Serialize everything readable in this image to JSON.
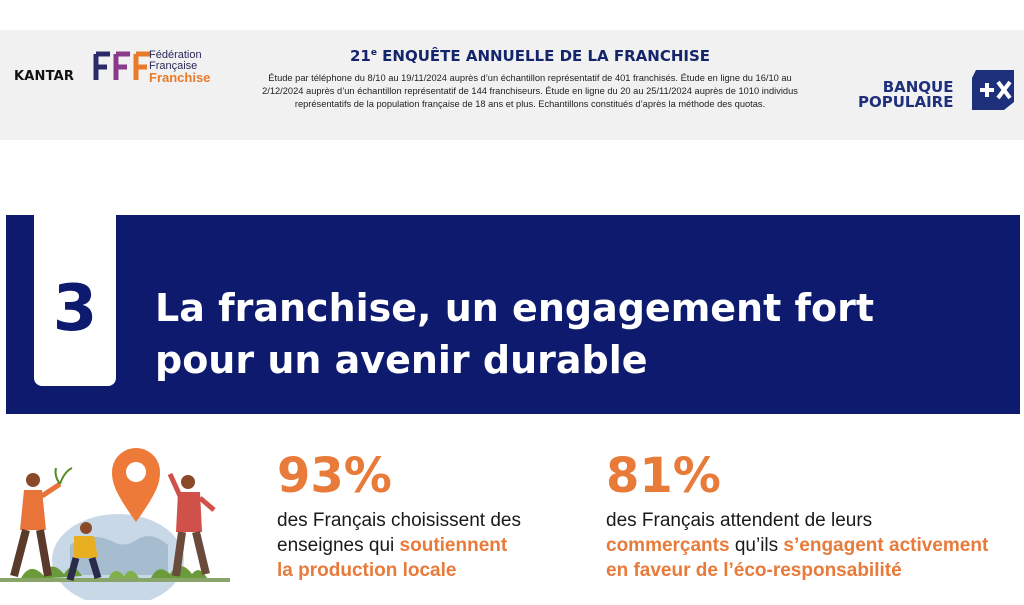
{
  "header": {
    "kantar": "KANTAR",
    "fff_line1": "Fédération",
    "fff_line2": "Française",
    "fff_line3": "Franchise",
    "title_number": "21",
    "title_suffix": "e",
    "title_rest": " ENQUÊTE ANNUELLE DE LA FRANCHISE",
    "desc_line1": "Étude par téléphone du 8/10 au 19/11/2024 auprès d’un échantillon représentatif de 401 franchisés. Étude en ligne du 16/10 au",
    "desc_line2": "2/12/2024 auprès d’un échantillon représentatif de 144 franchiseurs. Étude en ligne du 20 au 25/11/2024 auprès de 1010 individus",
    "desc_line3": "représentatifs de la population française de 18 ans et plus. Echantillons constitués d’après la méthode des quotas.",
    "bp_line1": "BANQUE",
    "bp_line2": "POPULAIRE"
  },
  "banner": {
    "number": "3",
    "title_line1": "La franchise, un engagement fort",
    "title_line2": "pour un avenir durable"
  },
  "stats": [
    {
      "value": "93%",
      "line1": "des Français choisissent des",
      "line2_plain": "enseignes qui ",
      "line2_hl": "soutiennent",
      "line3_hl": "la production locale"
    },
    {
      "value": "81%",
      "line1": "des Français attendent de leurs",
      "line2_hl1": "commerçants",
      "line2_plain": " qu’ils ",
      "line2_hl2": "s’engagent activement",
      "line3_hl": "en faveur de l’éco-responsabilité"
    }
  ],
  "colors": {
    "navy": "#0e1a6e",
    "orange": "#e87a3a",
    "header_bg": "#f1f1f1"
  }
}
